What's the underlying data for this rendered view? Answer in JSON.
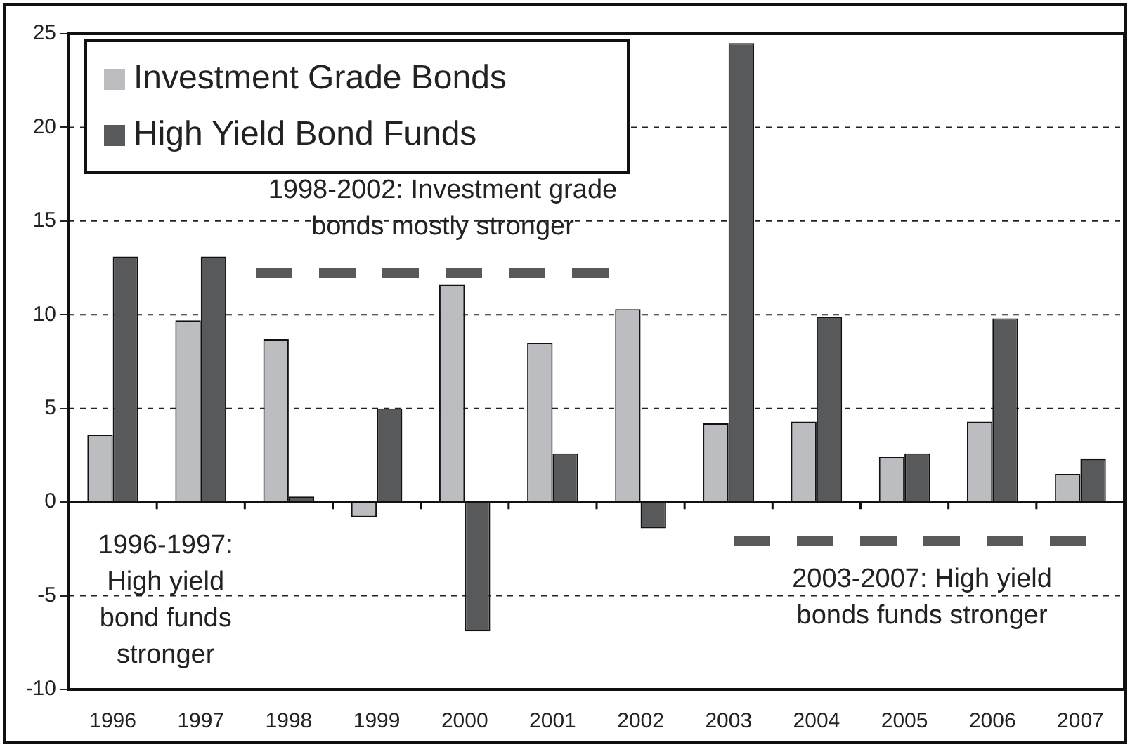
{
  "chart_data": {
    "type": "bar",
    "categories": [
      "1996",
      "1997",
      "1998",
      "1999",
      "2000",
      "2001",
      "2002",
      "2003",
      "2004",
      "2005",
      "2006",
      "2007"
    ],
    "series": [
      {
        "name": "Investment Grade Bonds",
        "color": "#bcbdc1",
        "values": [
          3.6,
          9.7,
          8.7,
          -0.8,
          11.6,
          8.5,
          10.3,
          4.2,
          4.3,
          2.4,
          4.3,
          1.5
        ]
      },
      {
        "name": "High Yield Bond Funds",
        "color": "#58595b",
        "values": [
          13.1,
          13.1,
          0.3,
          5.0,
          -6.9,
          2.6,
          -1.4,
          24.5,
          9.9,
          2.6,
          9.8,
          2.3
        ]
      }
    ],
    "ylim": [
      -10,
      25
    ],
    "yticks": [
      -10,
      -5,
      0,
      5,
      10,
      15,
      20,
      25
    ],
    "grid": "y",
    "legend": "top left",
    "annotations": [
      "1998-2002: Investment grade\nbonds mostly stronger",
      "1996-1997:\nHigh yield\nbond funds\nstronger",
      "2003-2007: High yield\nbonds funds stronger"
    ]
  }
}
